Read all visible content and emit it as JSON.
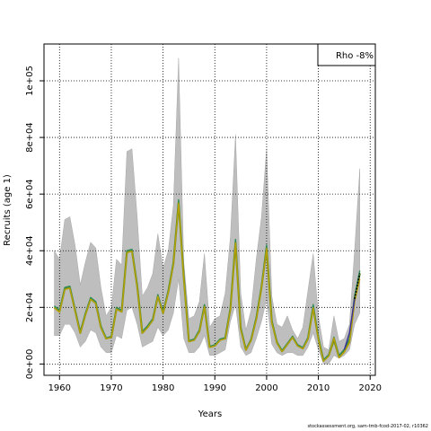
{
  "chart_data": {
    "type": "line",
    "xlabel": "Years",
    "ylabel": "Recruits (age 1)",
    "xlim": [
      1957,
      2021
    ],
    "ylim": [
      -4000,
      113000
    ],
    "x_ticks": [
      1960,
      1970,
      1980,
      1990,
      2000,
      2010,
      2020
    ],
    "x_tick_labels": [
      "1960",
      "1970",
      "1980",
      "1990",
      "2000",
      "2010",
      "2020"
    ],
    "y_ticks": [
      0,
      20000,
      40000,
      60000,
      80000,
      100000
    ],
    "y_tick_labels": [
      "0e+00",
      "2e+04",
      "4e+04",
      "6e+04",
      "8e+04",
      "1e+05"
    ],
    "grid": true,
    "legend": {
      "text": "Rho -8%",
      "placement": "top-right"
    },
    "years": [
      1959,
      1960,
      1961,
      1962,
      1963,
      1964,
      1965,
      1966,
      1967,
      1968,
      1969,
      1970,
      1971,
      1972,
      1973,
      1974,
      1975,
      1976,
      1977,
      1978,
      1979,
      1980,
      1981,
      1982,
      1983,
      1984,
      1985,
      1986,
      1987,
      1988,
      1989,
      1990,
      1991,
      1992,
      1993,
      1994,
      1995,
      1996,
      1997,
      1998,
      1999,
      2000,
      2001,
      2002,
      2003,
      2004,
      2005,
      2006,
      2007,
      2008,
      2009,
      2010,
      2011,
      2012,
      2013,
      2014,
      2015,
      2016,
      2017,
      2018
    ],
    "confidence_band": {
      "upper": [
        40000,
        37000,
        51000,
        52000,
        42000,
        28000,
        36000,
        43000,
        41000,
        27000,
        17000,
        20000,
        37000,
        35000,
        75000,
        76000,
        52000,
        24000,
        27000,
        32000,
        46000,
        34000,
        40000,
        56000,
        108000,
        36000,
        16000,
        17000,
        22000,
        39000,
        13000,
        16000,
        17000,
        25000,
        45000,
        81000,
        25000,
        12000,
        19000,
        37000,
        52000,
        76000,
        24000,
        14000,
        13000,
        17000,
        12000,
        9000,
        13000,
        26000,
        39000,
        17000,
        6000,
        5000,
        17000,
        8000,
        9000,
        14000,
        40000,
        69000
      ],
      "lower": [
        10000,
        10000,
        14000,
        14000,
        11000,
        6000,
        8000,
        12000,
        11000,
        6000,
        4000,
        4000,
        10000,
        9000,
        19000,
        20000,
        14000,
        6000,
        7000,
        8000,
        13000,
        10000,
        12000,
        18000,
        30000,
        9000,
        4000,
        4000,
        6000,
        10000,
        3000,
        3000,
        4000,
        5000,
        15000,
        21000,
        6000,
        3000,
        4000,
        9000,
        15000,
        23000,
        7000,
        4000,
        3000,
        4000,
        4000,
        3000,
        3000,
        6000,
        11000,
        5000,
        0,
        0,
        3000,
        2000,
        3000,
        5000,
        14000,
        18000
      ],
      "color": "#bebebe"
    },
    "series": [
      {
        "values": [
          20000,
          18500,
          26500,
          27000,
          19000,
          11000,
          17500,
          23000,
          21500,
          13000,
          9000,
          9500,
          19500,
          18500,
          39500,
          40000,
          27500,
          11000,
          13000,
          15500,
          24000,
          18000,
          25500,
          35500,
          57000,
          30500,
          8000,
          8500,
          11500,
          20500,
          6000,
          6500,
          8500,
          9000,
          19500,
          43000,
          12500,
          5000,
          8500,
          16000,
          27000,
          41000,
          15000,
          7500,
          4500,
          7000,
          9500,
          6500,
          5500,
          9000,
          20000,
          9000,
          1200,
          3000,
          8500,
          2500,
          4500,
          8000,
          23000,
          32000
        ],
        "color": "#6b8e23"
      },
      {
        "values": [
          20500,
          19000,
          27000,
          27500,
          19500,
          11500,
          18000,
          23500,
          22000,
          13500,
          9200,
          9800,
          20000,
          19000,
          40000,
          40500,
          28000,
          11500,
          13500,
          16000,
          24500,
          18500,
          26000,
          36000,
          58000,
          31000,
          8200,
          8800,
          12000,
          21000,
          6200,
          6800,
          8800,
          9300,
          20000,
          44000,
          13000,
          5200,
          8800,
          16500,
          27500,
          42000,
          15500,
          7800,
          4800,
          7300,
          9800,
          6800,
          5800,
          9400,
          21000,
          9500,
          1500,
          3300,
          9500,
          3000,
          5200,
          9000,
          24000,
          33000
        ],
        "color": "#2e8b57"
      },
      {
        "values": [
          19800,
          18300,
          26300,
          26800,
          18900,
          10900,
          17400,
          22900,
          21400,
          12900,
          8900,
          9400,
          19400,
          18400,
          39300,
          39800,
          27300,
          10900,
          12900,
          15400,
          23900,
          17900,
          25300,
          35300,
          56800,
          30300,
          7900,
          8400,
          11400,
          20300,
          5900,
          6400,
          8400,
          8900,
          19300,
          42800,
          12300,
          4900,
          8400,
          15800,
          26800,
          40800,
          14800,
          7400,
          4400,
          6900,
          9400,
          6400,
          5400,
          8900,
          19800,
          8800,
          1000,
          2800,
          9200,
          2200,
          4200,
          7500,
          22000,
          30000
        ],
        "color": "#b8a000"
      },
      {
        "values": [
          null,
          null,
          null,
          null,
          null,
          null,
          null,
          null,
          null,
          null,
          null,
          null,
          null,
          null,
          null,
          null,
          null,
          null,
          null,
          null,
          null,
          null,
          null,
          null,
          null,
          null,
          null,
          null,
          null,
          null,
          null,
          null,
          null,
          null,
          null,
          null,
          null,
          null,
          null,
          null,
          null,
          null,
          null,
          null,
          null,
          null,
          null,
          null,
          null,
          null,
          null,
          null,
          null,
          null,
          null,
          null,
          5000,
          11000,
          23000,
          null
        ],
        "color": "#3a2e9a"
      },
      {
        "values": [
          null,
          null,
          null,
          null,
          null,
          null,
          null,
          null,
          null,
          null,
          null,
          null,
          null,
          null,
          null,
          null,
          null,
          null,
          null,
          null,
          null,
          null,
          null,
          null,
          null,
          null,
          null,
          null,
          null,
          null,
          null,
          null,
          null,
          null,
          null,
          null,
          null,
          null,
          null,
          null,
          null,
          null,
          null,
          null,
          null,
          null,
          null,
          null,
          null,
          null,
          null,
          null,
          null,
          null,
          null,
          null,
          null,
          null,
          null,
          32000
        ],
        "color": "#000000",
        "dashed": true
      }
    ]
  },
  "footer": "stockassessment.org, sam-tmb-fcod-2017-02, r10362"
}
